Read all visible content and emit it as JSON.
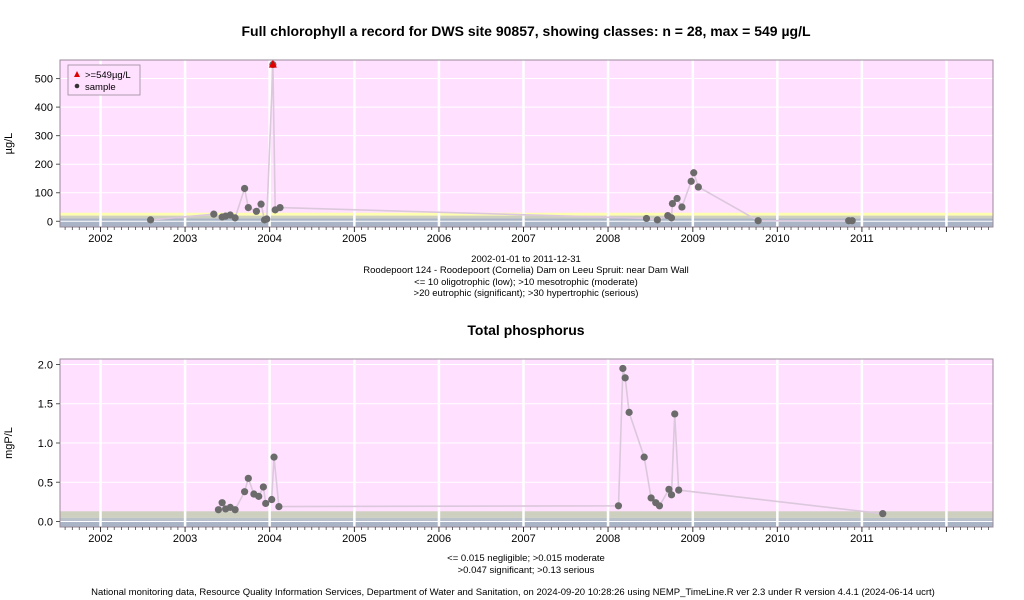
{
  "chart_data": [
    {
      "type": "scatter",
      "title": "Full chlorophyll a record for DWS site 90857, showing classes: n = 28, max = 549 µg/L",
      "ylabel": "µg/L",
      "x_tick_labels": [
        "2002",
        "2003",
        "2004",
        "2005",
        "2006",
        "2007",
        "2008",
        "2009",
        "2010",
        "2011"
      ],
      "y_ticks": [
        0,
        100,
        200,
        300,
        400,
        500
      ],
      "ylim": [
        -20,
        565
      ],
      "xlim": [
        "2001-07-10",
        "2012-07-20"
      ],
      "background_color": "#ffe0ff",
      "class_bands": [
        {
          "from": 0,
          "to": 10,
          "color": "#a9b5c6"
        },
        {
          "from": 10,
          "to": 20,
          "color": "#cdd0bf"
        },
        {
          "from": 20,
          "to": 30,
          "color": "#ffffb0"
        }
      ],
      "legend": {
        "placement": "top-left",
        "entries": [
          {
            "label": ">=549µg/L",
            "symbol": "triangle",
            "color": "#e00000"
          },
          {
            "label": "sample",
            "symbol": "dot",
            "color": "#333333"
          }
        ]
      },
      "captions": [
        "2002-01-01 to 2011-12-31",
        "Roodepoort 124 - Roodepoort (Cornelia) Dam on Leeu Spruit: near Dam Wall",
        "<= 10 oligotrophic (low); >10 mesotrophic (moderate)",
        ">20 eutrophic (significant); >30 hypertrophic (serious)"
      ],
      "series": [
        {
          "marker_color": "#6b6b6b",
          "line_color": "#dcc8dc",
          "points": [
            {
              "x": "2002-08-05",
              "y": 5
            },
            {
              "x": "2003-05-05",
              "y": 25
            },
            {
              "x": "2003-06-10",
              "y": 15
            },
            {
              "x": "2003-06-25",
              "y": 18
            },
            {
              "x": "2003-07-15",
              "y": 22
            },
            {
              "x": "2003-08-05",
              "y": 12
            },
            {
              "x": "2003-09-15",
              "y": 115
            },
            {
              "x": "2003-10-01",
              "y": 48
            },
            {
              "x": "2003-11-05",
              "y": 35
            },
            {
              "x": "2003-11-25",
              "y": 60
            },
            {
              "x": "2003-12-10",
              "y": 5
            },
            {
              "x": "2003-12-20",
              "y": 8
            },
            {
              "x": "2004-01-15",
              "y": 549
            },
            {
              "x": "2004-01-25",
              "y": 40
            },
            {
              "x": "2004-02-15",
              "y": 48
            },
            {
              "x": "2008-06-15",
              "y": 10
            },
            {
              "x": "2008-08-01",
              "y": 5
            },
            {
              "x": "2008-09-15",
              "y": 20
            },
            {
              "x": "2008-10-01",
              "y": 12
            },
            {
              "x": "2008-10-05",
              "y": 62
            },
            {
              "x": "2008-10-25",
              "y": 80
            },
            {
              "x": "2008-11-15",
              "y": 50
            },
            {
              "x": "2008-12-25",
              "y": 140
            },
            {
              "x": "2009-01-05",
              "y": 170
            },
            {
              "x": "2009-01-25",
              "y": 120
            },
            {
              "x": "2009-10-10",
              "y": 2
            },
            {
              "x": "2010-11-05",
              "y": 2
            },
            {
              "x": "2010-11-20",
              "y": 2
            }
          ]
        }
      ]
    },
    {
      "type": "scatter",
      "title": "Total phosphorus",
      "ylabel": "mgP/L",
      "x_tick_labels": [
        "2002",
        "2003",
        "2004",
        "2005",
        "2006",
        "2007",
        "2008",
        "2009",
        "2010",
        "2011"
      ],
      "y_ticks": [
        0.0,
        0.5,
        1.0,
        1.5,
        2.0
      ],
      "y_tick_labels": [
        "0.0",
        "0.5",
        "1.0",
        "1.5",
        "2.0"
      ],
      "ylim": [
        -0.07,
        2.07
      ],
      "xlim": [
        "2001-07-10",
        "2012-07-20"
      ],
      "background_color": "#ffe0ff",
      "class_bands": [
        {
          "from": 0,
          "to": 0.015,
          "color": "#a9b5c6"
        },
        {
          "from": 0.015,
          "to": 0.047,
          "color": "#b9c2c8"
        },
        {
          "from": 0.047,
          "to": 0.13,
          "color": "#cdd0bf"
        }
      ],
      "captions": [
        "<= 0.015 negligible; >0.015 moderate",
        ">0.047 significant; >0.13 serious"
      ],
      "series": [
        {
          "marker_color": "#6b6b6b",
          "line_color": "#dcc8dc",
          "points": [
            {
              "x": "2003-05-25",
              "y": 0.15
            },
            {
              "x": "2003-06-10",
              "y": 0.24
            },
            {
              "x": "2003-06-25",
              "y": 0.16
            },
            {
              "x": "2003-07-15",
              "y": 0.18
            },
            {
              "x": "2003-08-05",
              "y": 0.15
            },
            {
              "x": "2003-09-15",
              "y": 0.38
            },
            {
              "x": "2003-10-01",
              "y": 0.55
            },
            {
              "x": "2003-10-25",
              "y": 0.35
            },
            {
              "x": "2003-11-15",
              "y": 0.32
            },
            {
              "x": "2003-12-05",
              "y": 0.44
            },
            {
              "x": "2003-12-15",
              "y": 0.23
            },
            {
              "x": "2004-01-10",
              "y": 0.28
            },
            {
              "x": "2004-01-20",
              "y": 0.82
            },
            {
              "x": "2004-02-10",
              "y": 0.19
            },
            {
              "x": "2008-02-15",
              "y": 0.2
            },
            {
              "x": "2008-03-05",
              "y": 1.95
            },
            {
              "x": "2008-03-15",
              "y": 1.83
            },
            {
              "x": "2008-04-01",
              "y": 1.39
            },
            {
              "x": "2008-06-05",
              "y": 0.82
            },
            {
              "x": "2008-07-05",
              "y": 0.3
            },
            {
              "x": "2008-07-25",
              "y": 0.24
            },
            {
              "x": "2008-08-10",
              "y": 0.2
            },
            {
              "x": "2008-09-20",
              "y": 0.41
            },
            {
              "x": "2008-10-01",
              "y": 0.34
            },
            {
              "x": "2008-10-15",
              "y": 1.37
            },
            {
              "x": "2008-11-01",
              "y": 0.4
            },
            {
              "x": "2011-04-01",
              "y": 0.1
            }
          ]
        }
      ]
    }
  ],
  "footer": "National monitoring data, Resource Quality Information Services, Department of Water and Sanitation, on 2024-09-20 10:28:26 using NEMP_TimeLine.R ver 2.3 under R version 4.4.1 (2024-06-14 ucrt)"
}
